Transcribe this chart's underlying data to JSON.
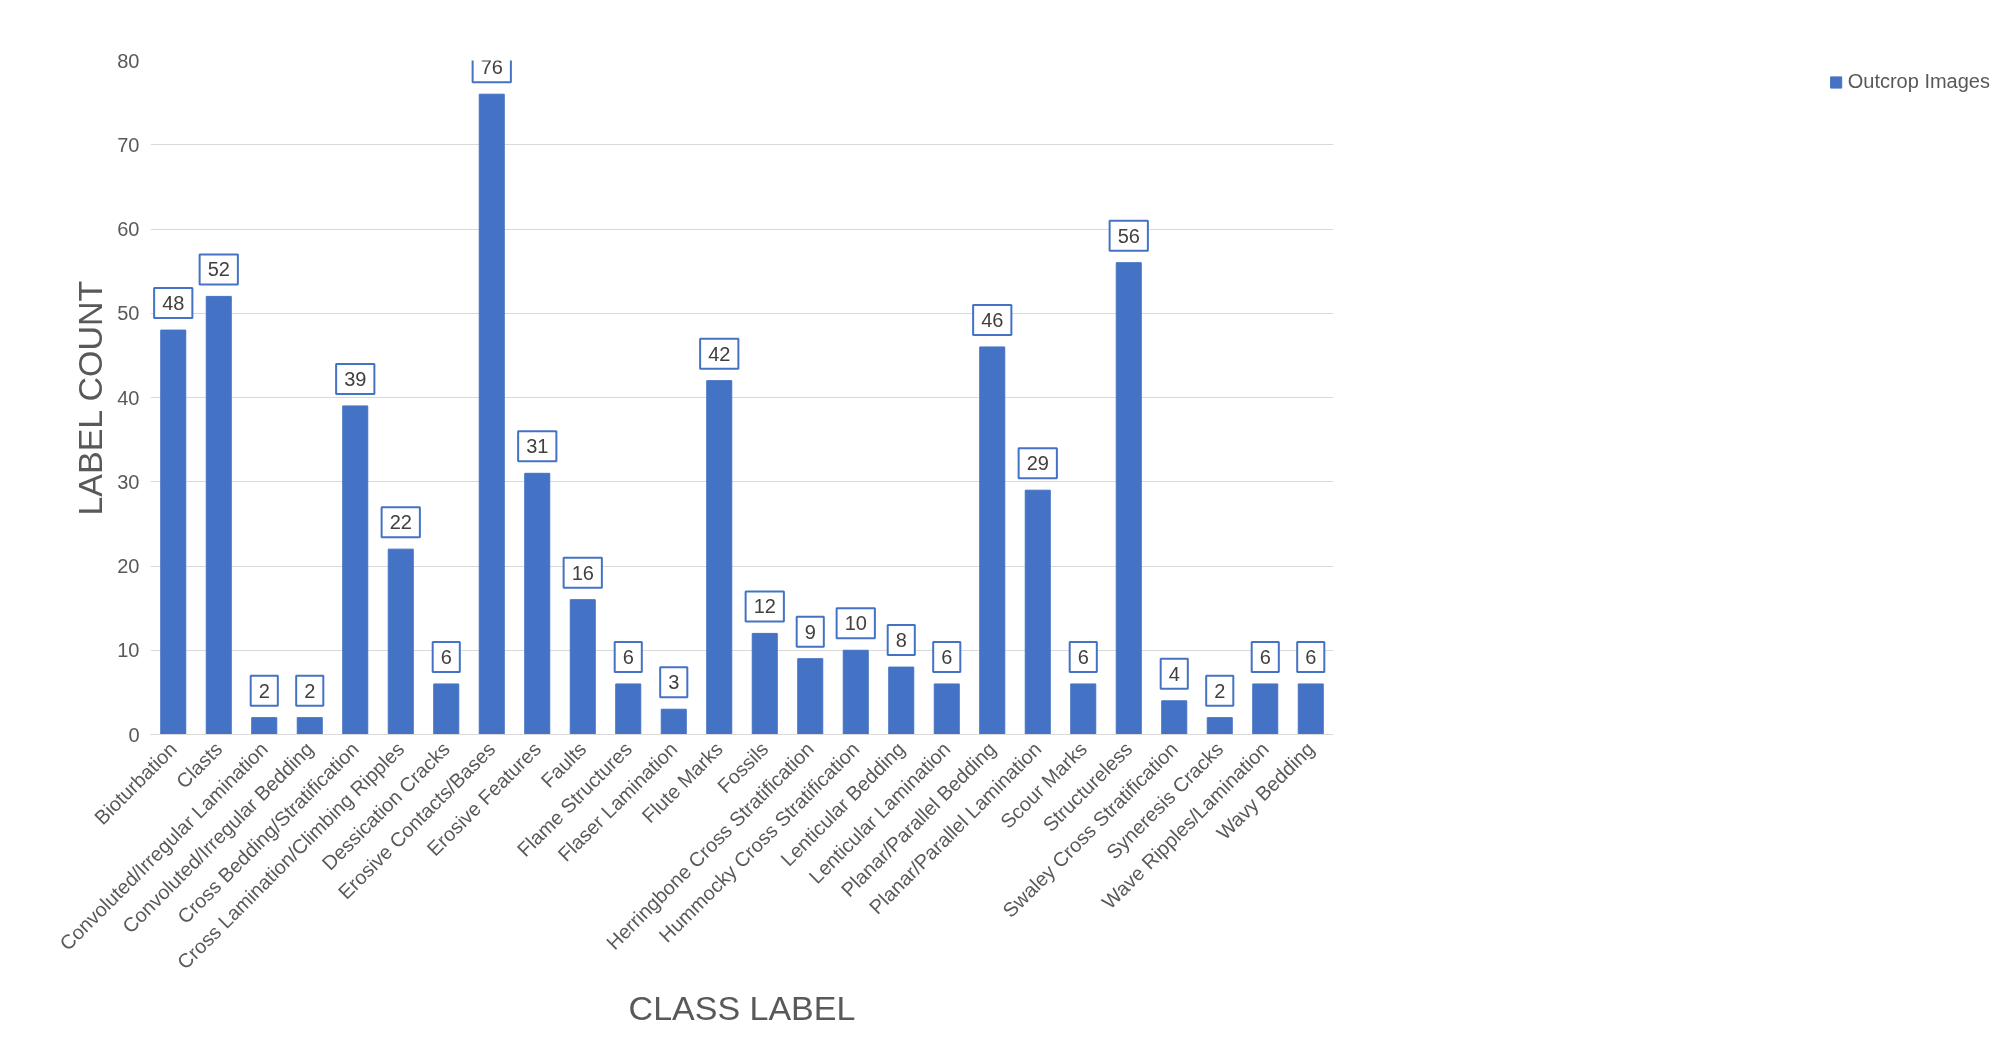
{
  "chart_data": {
    "type": "bar",
    "xlabel": "CLASS LABEL",
    "ylabel": "LABEL COUNT",
    "categories": [
      "Bioturbation",
      "Clasts",
      "Convoluted/Irregular Lamination",
      "Convoluted/Irregular Bedding",
      "Cross Bedding/Stratification",
      "Cross Lamination/Climbing Ripples",
      "Dessication Cracks",
      "Erosive Contacts/Bases",
      "Erosive Features",
      "Faults",
      "Flame Structures",
      "Flaser Lamination",
      "Flute Marks",
      "Fossils",
      "Herringbone Cross Stratification",
      "Hummocky Cross Stratification",
      "Lenticular Bedding",
      "Lenticular Lamination",
      "Planar/Parallel Bedding",
      "Planar/Parallel Lamination",
      "Scour Marks",
      "Structureless",
      "Swaley Cross Stratification",
      "Syneresis Cracks",
      "Wave Ripples/Lamination",
      "Wavy Bedding"
    ],
    "series": [
      {
        "name": "Outcrop Images",
        "color": "#4472c4",
        "values": [
          48,
          52,
          2,
          2,
          39,
          22,
          6,
          76,
          31,
          16,
          6,
          3,
          42,
          12,
          9,
          10,
          8,
          6,
          46,
          29,
          6,
          56,
          4,
          2,
          6,
          6
        ]
      }
    ],
    "ylim": [
      0,
      80
    ],
    "yticks": [
      0,
      10,
      20,
      30,
      40,
      50,
      60,
      70,
      80
    ],
    "grid": "y",
    "legend": "right",
    "data_labels": true
  }
}
